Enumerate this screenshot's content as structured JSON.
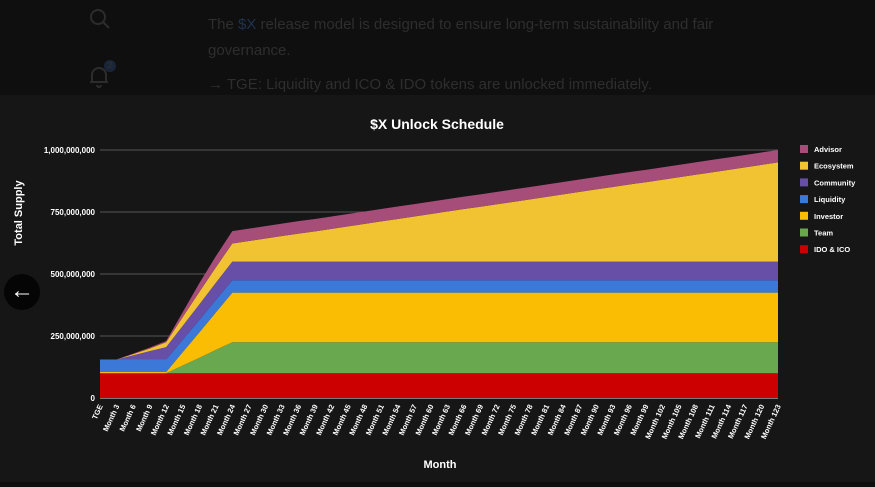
{
  "top": {
    "paragraph_pre": "The ",
    "paragraph_highlight": "$X",
    "paragraph_post": " release model is designed to ensure long-term sustainability and fair governance.",
    "bullet": "→ TGE: Liquidity and ICO & IDO tokens are unlocked immediately.",
    "notification_count": "2"
  },
  "chart_data": {
    "type": "area",
    "stacked": true,
    "title": "$X Unlock Schedule",
    "xlabel": "Month",
    "ylabel": "Total Supply",
    "ylim": [
      0,
      1000000000
    ],
    "yticks": [
      "0",
      "250,000,000",
      "500,000,000",
      "750,000,000",
      "1,000,000,000"
    ],
    "ytick_values": [
      0,
      250000000,
      500000000,
      750000000,
      1000000000
    ],
    "grid": true,
    "legend_position": "right",
    "unit_multiplier": 1000000,
    "categories": [
      "TGE",
      "Month 3",
      "Month 6",
      "Month 9",
      "Month 12",
      "Month 15",
      "Month 18",
      "Month 21",
      "Month 24",
      "Month 27",
      "Month 30",
      "Month 33",
      "Month 36",
      "Month 39",
      "Month 42",
      "Month 45",
      "Month 48",
      "Month 51",
      "Month 54",
      "Month 57",
      "Month 60",
      "Month 63",
      "Month 66",
      "Month 69",
      "Month 72",
      "Month 75",
      "Month 78",
      "Month 81",
      "Month 84",
      "Month 87",
      "Month 90",
      "Month 93",
      "Month 96",
      "Month 99",
      "Month 102",
      "Month 105",
      "Month 108",
      "Month 111",
      "Month 114",
      "Month 117",
      "Month 120",
      "Month 123"
    ],
    "series": [
      {
        "name": "IDO & ICO",
        "color": "#cc0000",
        "values": [
          100,
          100,
          100,
          100,
          100,
          100,
          100,
          100,
          100,
          100,
          100,
          100,
          100,
          100,
          100,
          100,
          100,
          100,
          100,
          100,
          100,
          100,
          100,
          100,
          100,
          100,
          100,
          100,
          100,
          100,
          100,
          100,
          100,
          100,
          100,
          100,
          100,
          100,
          100,
          100,
          100,
          100
        ]
      },
      {
        "name": "Team",
        "color": "#6aa84f",
        "values": [
          0,
          0,
          0,
          0,
          0,
          31,
          62,
          94,
          125,
          125,
          125,
          125,
          125,
          125,
          125,
          125,
          125,
          125,
          125,
          125,
          125,
          125,
          125,
          125,
          125,
          125,
          125,
          125,
          125,
          125,
          125,
          125,
          125,
          125,
          125,
          125,
          125,
          125,
          125,
          125,
          125,
          125
        ]
      },
      {
        "name": "Investor",
        "color": "#fbbc04",
        "values": [
          5,
          5,
          5,
          5,
          5,
          54,
          102,
          151,
          200,
          200,
          200,
          200,
          200,
          200,
          200,
          200,
          200,
          200,
          200,
          200,
          200,
          200,
          200,
          200,
          200,
          200,
          200,
          200,
          200,
          200,
          200,
          200,
          200,
          200,
          200,
          200,
          200,
          200,
          200,
          200,
          200,
          200
        ]
      },
      {
        "name": "Liquidity",
        "color": "#3c78d8",
        "values": [
          50,
          50,
          50,
          50,
          50,
          50,
          50,
          50,
          50,
          50,
          50,
          50,
          50,
          50,
          50,
          50,
          50,
          50,
          50,
          50,
          50,
          50,
          50,
          50,
          50,
          50,
          50,
          50,
          50,
          50,
          50,
          50,
          50,
          50,
          50,
          50,
          50,
          50,
          50,
          50,
          50,
          50
        ]
      },
      {
        "name": "Community",
        "color": "#674ea7",
        "values": [
          0,
          0,
          17,
          34,
          50,
          56,
          63,
          69,
          75,
          75,
          75,
          75,
          75,
          75,
          75,
          75,
          75,
          75,
          75,
          75,
          75,
          75,
          75,
          75,
          75,
          75,
          75,
          75,
          75,
          75,
          75,
          75,
          75,
          75,
          75,
          75,
          75,
          75,
          75,
          75,
          75,
          75
        ]
      },
      {
        "name": "Ecosystem",
        "color": "#f1c232",
        "values": [
          0,
          0,
          5,
          10,
          20,
          35,
          50,
          62,
          73,
          83,
          93,
          103,
          113,
          122,
          132,
          142,
          152,
          162,
          172,
          182,
          192,
          202,
          212,
          221,
          231,
          241,
          251,
          261,
          271,
          281,
          291,
          301,
          311,
          320,
          330,
          340,
          350,
          360,
          370,
          380,
          390,
          400
        ]
      },
      {
        "name": "Advisor",
        "color": "#a64d79",
        "values": [
          0,
          0,
          2,
          4,
          5,
          20,
          35,
          45,
          50,
          50,
          50,
          50,
          50,
          50,
          50,
          50,
          50,
          50,
          50,
          50,
          50,
          50,
          50,
          50,
          50,
          50,
          50,
          50,
          50,
          50,
          50,
          50,
          50,
          50,
          50,
          50,
          50,
          50,
          50,
          50,
          50,
          50
        ]
      }
    ]
  }
}
